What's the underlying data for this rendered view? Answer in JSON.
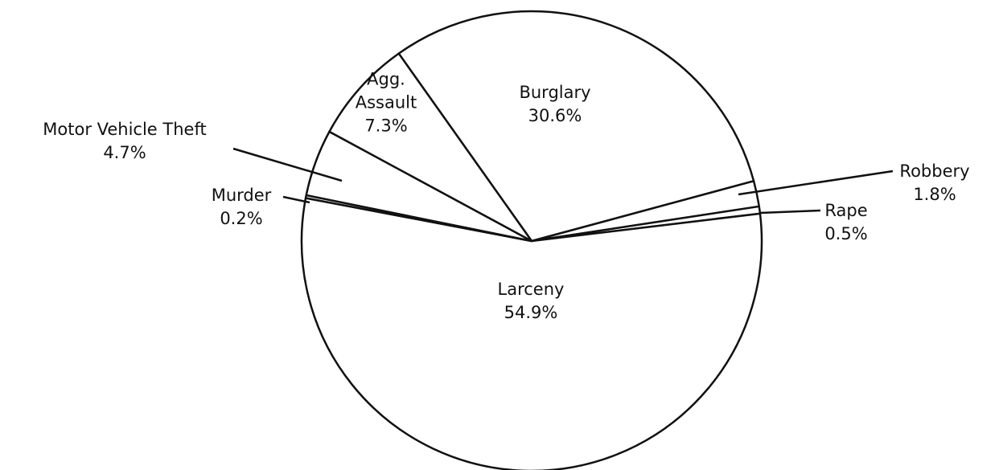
{
  "chart_data": {
    "type": "pie",
    "categories": [
      "Burglary",
      "Robbery",
      "Rape",
      "Larceny",
      "Murder",
      "Motor Vehicle Theft",
      "Agg. Assault"
    ],
    "values": [
      30.6,
      1.8,
      0.5,
      54.9,
      0.2,
      4.7,
      7.3
    ],
    "value_labels": [
      "30.6%",
      "1.8%",
      "0.5%",
      "54.9%",
      "0.2%",
      "4.7%",
      "7.3%"
    ],
    "color": "#ffffff"
  }
}
